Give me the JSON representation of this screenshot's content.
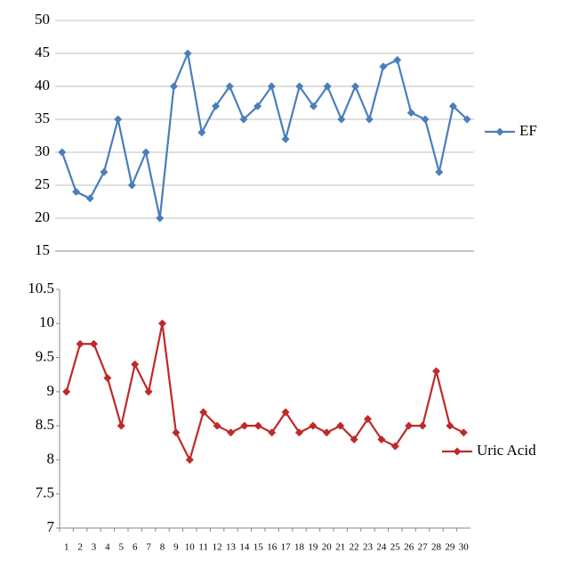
{
  "chart_data": [
    {
      "type": "line",
      "grid": true,
      "series": [
        {
          "name": "EF",
          "color": "#4a7ebb",
          "values": [
            30,
            24,
            23,
            27,
            35,
            25,
            30,
            20,
            40,
            45,
            33,
            37,
            40,
            35,
            37,
            40,
            32,
            40,
            37,
            40,
            35,
            40,
            35,
            43,
            44,
            36,
            35,
            27,
            37,
            35
          ]
        }
      ],
      "ylim": [
        15,
        50
      ],
      "yticks": [
        15,
        20,
        25,
        30,
        35,
        40,
        45,
        50
      ]
    },
    {
      "type": "line",
      "grid": false,
      "categories": [
        1,
        2,
        3,
        4,
        5,
        6,
        7,
        8,
        9,
        10,
        11,
        12,
        13,
        14,
        15,
        16,
        17,
        18,
        19,
        20,
        21,
        22,
        23,
        24,
        25,
        26,
        27,
        28,
        29,
        30
      ],
      "series": [
        {
          "name": "Uric Acid",
          "color": "#be2a2a",
          "values": [
            9,
            9.7,
            9.7,
            9.2,
            8.5,
            9.4,
            9,
            10,
            8.4,
            8,
            8.7,
            8.5,
            8.4,
            8.5,
            8.5,
            8.4,
            8.7,
            8.4,
            8.5,
            8.4,
            8.5,
            8.3,
            8.6,
            8.3,
            8.2,
            8.5,
            8.5,
            9.3,
            8.5,
            8.4
          ]
        }
      ],
      "ylim": [
        7,
        10.5
      ],
      "yticks": [
        7,
        7.5,
        8,
        8.5,
        9,
        9.5,
        10,
        10.5
      ]
    }
  ]
}
